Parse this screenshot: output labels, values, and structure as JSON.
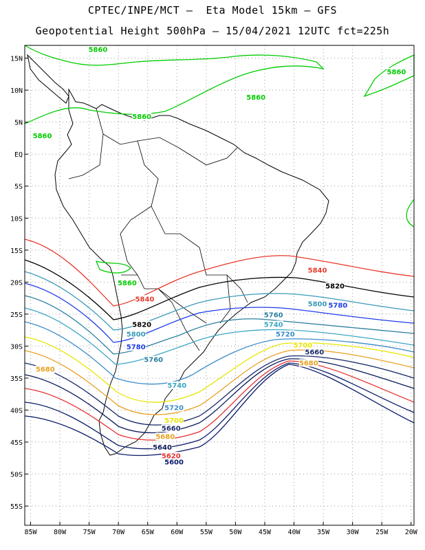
{
  "header": {
    "line1": "CPTEC/INPE/MCT –  Eta Model 15km – GFS",
    "line2": "Geopotential Height 500hPa – 15/04/2021 12UTC fct=225h"
  },
  "axes": {
    "lat_labels": [
      "15N",
      "10N",
      "5N",
      "EQ",
      "5S",
      "10S",
      "15S",
      "20S",
      "25S",
      "30S",
      "35S",
      "40S",
      "45S",
      "50S",
      "55S"
    ],
    "lon_labels": [
      "85W",
      "80W",
      "75W",
      "70W",
      "65W",
      "60W",
      "55W",
      "50W",
      "45W",
      "40W",
      "35W",
      "30W",
      "25W",
      "20W"
    ],
    "lat_range": [
      17,
      -58
    ],
    "lon_range": [
      -86,
      -19.5
    ],
    "grid": "dotted"
  },
  "contours": [
    {
      "level": "5860",
      "color": "#00cc00"
    },
    {
      "level": "5840",
      "color": "#e8392c"
    },
    {
      "level": "5820",
      "color": "#000000"
    },
    {
      "level": "5800",
      "color": "#3a9ab8"
    },
    {
      "level": "5780",
      "color": "#1e3ce8"
    },
    {
      "level": "5760",
      "color": "#2a7fa0"
    },
    {
      "level": "5740",
      "color": "#3aa6c4"
    },
    {
      "level": "5720",
      "color": "#3a8cc8"
    },
    {
      "level": "5700",
      "color": "#e6e600"
    },
    {
      "level": "5680",
      "color": "#e8a020"
    },
    {
      "level": "5660",
      "color": "#1a2a6a"
    },
    {
      "level": "5640",
      "color": "#0a1a5a"
    },
    {
      "level": "5620",
      "color": "#e83030"
    },
    {
      "level": "5600",
      "color": "#0a1a6a"
    }
  ],
  "contour_labels": [
    {
      "text": "5860",
      "color": "#00cc00",
      "lon": -73.5,
      "lat": 16.0
    },
    {
      "text": "5860",
      "color": "#00cc00",
      "lon": -22.5,
      "lat": 12.5
    },
    {
      "text": "5860",
      "color": "#00cc00",
      "lon": -46.5,
      "lat": 8.5
    },
    {
      "text": "5860",
      "color": "#00cc00",
      "lon": -66.0,
      "lat": 5.5
    },
    {
      "text": "5860",
      "color": "#00cc00",
      "lon": -83.0,
      "lat": 2.5
    },
    {
      "text": "5860",
      "color": "#00cc00",
      "lon": -68.5,
      "lat": -20.5
    },
    {
      "text": "5840",
      "color": "#e8392c",
      "lon": -36.0,
      "lat": -18.5
    },
    {
      "text": "5840",
      "color": "#e8392c",
      "lon": -65.5,
      "lat": -23.0
    },
    {
      "text": "5820",
      "color": "#000000",
      "lon": -33.0,
      "lat": -21.0
    },
    {
      "text": "5820",
      "color": "#000000",
      "lon": -66.0,
      "lat": -27.0
    },
    {
      "text": "5800",
      "color": "#3a9ab8",
      "lon": -36.0,
      "lat": -23.8
    },
    {
      "text": "5800",
      "color": "#3a9ab8",
      "lon": -67.0,
      "lat": -28.5
    },
    {
      "text": "5780",
      "color": "#1e3ce8",
      "lon": -32.5,
      "lat": -24.0
    },
    {
      "text": "5780",
      "color": "#1e3ce8",
      "lon": -67.0,
      "lat": -30.5
    },
    {
      "text": "5760",
      "color": "#2a7fa0",
      "lon": -43.5,
      "lat": -25.5
    },
    {
      "text": "5760",
      "color": "#2a7fa0",
      "lon": -64.0,
      "lat": -32.5
    },
    {
      "text": "5740",
      "color": "#3aa6c4",
      "lon": -43.5,
      "lat": -27.0
    },
    {
      "text": "5740",
      "color": "#3aa6c4",
      "lon": -60.0,
      "lat": -36.5
    },
    {
      "text": "5720",
      "color": "#3a8cc8",
      "lon": -41.5,
      "lat": -28.5
    },
    {
      "text": "5720",
      "color": "#3a8cc8",
      "lon": -60.5,
      "lat": -40.0
    },
    {
      "text": "5700",
      "color": "#e6e600",
      "lon": -38.5,
      "lat": -30.2
    },
    {
      "text": "5700",
      "color": "#e6e600",
      "lon": -60.5,
      "lat": -42.0
    },
    {
      "text": "5680",
      "color": "#e8a020",
      "lon": -82.5,
      "lat": -34.0
    },
    {
      "text": "5680",
      "color": "#e8a020",
      "lon": -37.5,
      "lat": -33.0
    },
    {
      "text": "5680",
      "color": "#e8a020",
      "lon": -62.0,
      "lat": -44.5
    },
    {
      "text": "5660",
      "color": "#1a2a6a",
      "lon": -36.5,
      "lat": -31.3
    },
    {
      "text": "5660",
      "color": "#1a2a6a",
      "lon": -61.0,
      "lat": -43.2
    },
    {
      "text": "5640",
      "color": "#0a1a5a",
      "lon": -62.5,
      "lat": -46.2
    },
    {
      "text": "5620",
      "color": "#e83030",
      "lon": -61.0,
      "lat": -47.5
    },
    {
      "text": "5600",
      "color": "#0a1a6a",
      "lon": -60.5,
      "lat": -48.5
    }
  ]
}
